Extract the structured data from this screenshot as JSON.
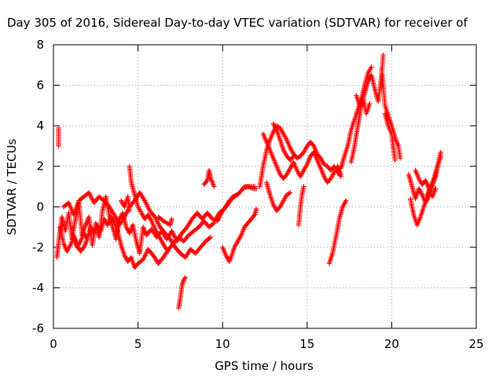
{
  "chart_data": {
    "type": "scatter",
    "title": "Day 305 of 2016, Sidereal Day-to-day VTEC variation (SDTVAR) for receiver of",
    "xlabel": "GPS time / hours",
    "ylabel": "SDTVAR / TECUs",
    "xlim": [
      0,
      25
    ],
    "ylim": [
      -6,
      8
    ],
    "xticks": [
      0,
      5,
      10,
      15,
      20,
      25
    ],
    "yticks": [
      -6,
      -4,
      -2,
      0,
      2,
      4,
      6,
      8
    ],
    "grid": true,
    "marker": "plus",
    "color": "#ff0000",
    "segments": [
      [
        [
          0.3,
          3.0
        ],
        [
          0.3,
          3.9
        ]
      ],
      [
        [
          0.2,
          -2.5
        ],
        [
          0.3,
          -1.8
        ],
        [
          0.5,
          -0.5
        ],
        [
          0.7,
          -1.2
        ],
        [
          0.9,
          -0.3
        ],
        [
          1.1,
          -1.6
        ],
        [
          1.3,
          -0.6
        ],
        [
          1.5,
          0.2
        ],
        [
          1.7,
          -1.4
        ],
        [
          1.9,
          -0.9
        ],
        [
          2.1,
          -0.5
        ],
        [
          2.3,
          -1.9
        ],
        [
          2.5,
          -0.8
        ],
        [
          2.7,
          -1.5
        ],
        [
          2.9,
          -0.2
        ],
        [
          3.1,
          0.5
        ],
        [
          3.3,
          -0.4
        ],
        [
          3.5,
          -1.0
        ],
        [
          3.7,
          -1.6
        ],
        [
          3.9,
          -0.6
        ],
        [
          4.1,
          -0.3
        ],
        [
          4.3,
          -1.0
        ],
        [
          4.5,
          -1.3
        ],
        [
          4.7,
          -0.9
        ],
        [
          4.9,
          -1.7
        ],
        [
          5.1,
          -2.3
        ],
        [
          5.3,
          -1.0
        ],
        [
          5.5,
          -1.4
        ],
        [
          5.8,
          -1.1
        ],
        [
          6.1,
          -1.5
        ],
        [
          6.4,
          -1.2
        ],
        [
          6.7,
          -1.6
        ],
        [
          7.0,
          -1.2
        ],
        [
          7.3,
          -1.7
        ],
        [
          7.6,
          -1.3
        ],
        [
          7.9,
          -1.0
        ],
        [
          8.2,
          -0.6
        ],
        [
          8.5,
          -0.3
        ],
        [
          8.8,
          -0.6
        ],
        [
          9.1,
          -0.3
        ],
        [
          9.4,
          -0.6
        ],
        [
          9.7,
          -0.7
        ],
        [
          10.0,
          -0.2
        ],
        [
          10.3,
          0.1
        ],
        [
          10.6,
          0.5
        ],
        [
          10.9,
          0.6
        ],
        [
          11.2,
          0.9
        ],
        [
          11.5,
          1.0
        ],
        [
          11.8,
          0.9
        ],
        [
          12.0,
          0.9
        ]
      ],
      [
        [
          0.4,
          -1.0
        ],
        [
          0.6,
          -1.8
        ],
        [
          0.8,
          -2.2
        ],
        [
          1.0,
          -1.9
        ],
        [
          1.2,
          -1.5
        ],
        [
          1.4,
          -2.0
        ],
        [
          1.6,
          -1.7
        ],
        [
          1.8,
          -1.3
        ],
        [
          2.0,
          -1.6
        ],
        [
          2.2,
          -1.0
        ],
        [
          2.4,
          -1.3
        ],
        [
          2.6,
          -0.9
        ],
        [
          2.8,
          -1.2
        ],
        [
          3.0,
          -0.6
        ],
        [
          3.2,
          -0.9
        ],
        [
          3.4,
          -0.5
        ],
        [
          3.6,
          -0.8
        ],
        [
          3.8,
          -1.2
        ],
        [
          4.0,
          -1.9
        ],
        [
          4.2,
          -2.4
        ],
        [
          4.4,
          -2.7
        ],
        [
          4.6,
          -2.5
        ],
        [
          4.8,
          -3.0
        ],
        [
          5.0,
          -2.8
        ],
        [
          5.3,
          -2.6
        ],
        [
          5.6,
          -2.1
        ],
        [
          5.9,
          -2.4
        ],
        [
          6.2,
          -2.8
        ],
        [
          6.5,
          -2.5
        ],
        [
          6.8,
          -2.1
        ],
        [
          7.1,
          -1.8
        ],
        [
          7.4,
          -1.5
        ],
        [
          7.7,
          -1.7
        ],
        [
          8.0,
          -1.4
        ],
        [
          8.3,
          -1.2
        ],
        [
          8.6,
          -1.0
        ],
        [
          8.9,
          -0.7
        ],
        [
          9.2,
          -1.0
        ],
        [
          9.5,
          -0.8
        ]
      ],
      [
        [
          0.6,
          0.0
        ],
        [
          0.9,
          0.2
        ],
        [
          1.2,
          -0.4
        ],
        [
          1.5,
          0.3
        ],
        [
          1.8,
          0.5
        ],
        [
          2.1,
          0.7
        ],
        [
          2.4,
          0.2
        ],
        [
          2.7,
          0.5
        ],
        [
          3.0,
          0.3
        ],
        [
          3.3,
          0.0
        ],
        [
          3.6,
          -0.4
        ],
        [
          3.9,
          -0.9
        ],
        [
          4.2,
          -0.5
        ],
        [
          4.5,
          0.0
        ],
        [
          4.8,
          0.3
        ],
        [
          5.1,
          0.7
        ],
        [
          5.4,
          0.3
        ],
        [
          5.7,
          -0.2
        ],
        [
          6.0,
          -0.5
        ],
        [
          6.3,
          -1.0
        ],
        [
          6.6,
          -1.3
        ],
        [
          6.9,
          -1.6
        ],
        [
          7.2,
          -2.0
        ],
        [
          7.5,
          -2.3
        ],
        [
          7.8,
          -2.5
        ],
        [
          8.1,
          -2.1
        ],
        [
          8.4,
          -2.3
        ],
        [
          8.7,
          -2.0
        ],
        [
          9.0,
          -1.7
        ],
        [
          9.3,
          -1.5
        ]
      ],
      [
        [
          1.2,
          -1.4
        ],
        [
          1.4,
          -1.9
        ],
        [
          1.6,
          -2.2
        ],
        [
          1.8,
          -2.0
        ],
        [
          2.0,
          -1.6
        ]
      ],
      [
        [
          4.5,
          2.0
        ],
        [
          4.6,
          1.2
        ],
        [
          4.8,
          0.6
        ],
        [
          5.0,
          0.0
        ],
        [
          5.2,
          -0.3
        ],
        [
          5.4,
          -0.6
        ],
        [
          5.6,
          -0.4
        ],
        [
          5.8,
          -0.7
        ],
        [
          6.0,
          -1.1
        ],
        [
          6.2,
          -1.4
        ],
        [
          6.4,
          -1.7
        ],
        [
          6.6,
          -2.0
        ],
        [
          6.8,
          -2.2
        ]
      ],
      [
        [
          6.2,
          -0.5
        ],
        [
          6.5,
          -0.7
        ],
        [
          6.9,
          -0.9
        ],
        [
          7.0,
          -0.6
        ]
      ],
      [
        [
          4.0,
          0.3
        ],
        [
          4.2,
          0.0
        ],
        [
          4.4,
          0.5
        ],
        [
          4.5,
          -0.2
        ]
      ],
      [
        [
          7.4,
          -5.0
        ],
        [
          7.5,
          -4.5
        ],
        [
          7.6,
          -3.9
        ],
        [
          7.7,
          -3.6
        ],
        [
          7.8,
          -3.5
        ]
      ],
      [
        [
          8.9,
          1.1
        ],
        [
          9.1,
          1.3
        ],
        [
          9.2,
          1.8
        ],
        [
          9.3,
          1.4
        ],
        [
          9.5,
          1.0
        ]
      ],
      [
        [
          9.6,
          -0.6
        ],
        [
          9.8,
          -0.3
        ],
        [
          10.1,
          -0.1
        ],
        [
          10.4,
          0.3
        ],
        [
          10.7,
          0.5
        ],
        [
          11.0,
          0.7
        ],
        [
          11.3,
          1.0
        ],
        [
          11.6,
          1.0
        ],
        [
          11.9,
          1.0
        ]
      ],
      [
        [
          10.0,
          -2.0
        ],
        [
          10.2,
          -2.4
        ],
        [
          10.4,
          -2.7
        ],
        [
          10.5,
          -2.5
        ],
        [
          10.7,
          -2.0
        ],
        [
          10.9,
          -1.7
        ],
        [
          11.1,
          -1.4
        ],
        [
          11.3,
          -1.0
        ],
        [
          11.5,
          -0.8
        ],
        [
          11.7,
          -0.6
        ],
        [
          11.9,
          -0.4
        ],
        [
          12.0,
          -0.1
        ]
      ],
      [
        [
          12.2,
          1.0
        ],
        [
          12.4,
          2.0
        ],
        [
          12.6,
          2.8
        ],
        [
          12.8,
          3.3
        ],
        [
          13.0,
          3.7
        ],
        [
          13.2,
          4.0
        ],
        [
          13.4,
          3.9
        ],
        [
          13.6,
          3.6
        ],
        [
          13.8,
          3.3
        ],
        [
          14.0,
          2.9
        ],
        [
          14.2,
          2.6
        ],
        [
          14.4,
          2.4
        ],
        [
          14.6,
          2.5
        ],
        [
          14.8,
          2.7
        ],
        [
          15.0,
          3.0
        ],
        [
          15.2,
          3.2
        ],
        [
          15.4,
          3.0
        ],
        [
          15.6,
          2.6
        ],
        [
          15.8,
          2.4
        ],
        [
          16.0,
          2.1
        ],
        [
          16.2,
          2.0
        ],
        [
          16.4,
          1.8
        ],
        [
          16.6,
          2.0
        ],
        [
          16.8,
          1.7
        ],
        [
          17.0,
          1.5
        ]
      ],
      [
        [
          12.4,
          3.6
        ],
        [
          12.6,
          3.2
        ],
        [
          12.8,
          2.8
        ],
        [
          13.0,
          2.4
        ],
        [
          13.2,
          2.0
        ],
        [
          13.4,
          1.6
        ],
        [
          13.6,
          1.4
        ],
        [
          13.8,
          1.6
        ],
        [
          14.0,
          1.9
        ],
        [
          14.2,
          2.2
        ],
        [
          14.4,
          1.8
        ],
        [
          14.6,
          1.5
        ],
        [
          14.8,
          1.8
        ],
        [
          15.0,
          2.1
        ],
        [
          15.2,
          2.5
        ],
        [
          15.4,
          2.7
        ],
        [
          15.6,
          2.3
        ],
        [
          15.8,
          1.9
        ],
        [
          16.0,
          1.5
        ],
        [
          16.2,
          1.2
        ],
        [
          16.4,
          1.4
        ],
        [
          16.6,
          1.7
        ],
        [
          16.8,
          2.0
        ],
        [
          17.0,
          1.6
        ]
      ],
      [
        [
          12.6,
          1.2
        ],
        [
          12.8,
          0.6
        ],
        [
          13.0,
          0.1
        ],
        [
          13.2,
          -0.2
        ],
        [
          13.4,
          0.0
        ],
        [
          13.6,
          0.3
        ],
        [
          13.8,
          0.6
        ],
        [
          14.0,
          0.7
        ]
      ],
      [
        [
          13.0,
          4.1
        ],
        [
          13.2,
          3.8
        ],
        [
          13.4,
          3.3
        ],
        [
          13.6,
          2.8
        ],
        [
          13.8,
          2.5
        ],
        [
          14.0,
          2.3
        ],
        [
          14.2,
          2.5
        ]
      ],
      [
        [
          14.5,
          -0.9
        ],
        [
          14.6,
          0.0
        ],
        [
          14.7,
          0.6
        ],
        [
          14.8,
          1.0
        ]
      ],
      [
        [
          16.3,
          -2.8
        ],
        [
          16.5,
          -2.3
        ],
        [
          16.7,
          -1.5
        ],
        [
          16.9,
          -0.6
        ],
        [
          17.1,
          0.0
        ],
        [
          17.3,
          0.3
        ]
      ],
      [
        [
          17.0,
          1.9
        ],
        [
          17.2,
          2.5
        ],
        [
          17.4,
          3.0
        ],
        [
          17.6,
          3.8
        ],
        [
          17.8,
          4.3
        ],
        [
          18.0,
          4.8
        ],
        [
          18.2,
          5.3
        ],
        [
          18.4,
          6.0
        ],
        [
          18.6,
          6.6
        ],
        [
          18.8,
          6.9
        ]
      ],
      [
        [
          17.6,
          2.2
        ],
        [
          17.8,
          3.0
        ],
        [
          18.0,
          4.0
        ],
        [
          18.2,
          5.0
        ],
        [
          18.4,
          5.6
        ],
        [
          18.6,
          6.2
        ],
        [
          18.8,
          6.5
        ],
        [
          19.0,
          5.8
        ],
        [
          19.2,
          5.2
        ],
        [
          19.4,
          6.5
        ],
        [
          19.5,
          7.5
        ]
      ],
      [
        [
          17.9,
          5.5
        ],
        [
          18.1,
          5.0
        ],
        [
          18.3,
          5.4
        ],
        [
          18.5,
          4.6
        ],
        [
          18.7,
          5.1
        ]
      ],
      [
        [
          19.4,
          6.8
        ],
        [
          19.5,
          6.0
        ],
        [
          19.6,
          5.0
        ],
        [
          19.8,
          4.5
        ],
        [
          20.0,
          4.0
        ],
        [
          20.2,
          3.4
        ],
        [
          20.4,
          3.0
        ],
        [
          20.5,
          2.4
        ]
      ],
      [
        [
          19.6,
          4.6
        ],
        [
          19.8,
          4.0
        ],
        [
          20.0,
          3.6
        ],
        [
          20.1,
          2.9
        ],
        [
          20.2,
          2.3
        ]
      ],
      [
        [
          21.0,
          1.6
        ],
        [
          21.2,
          1.0
        ],
        [
          21.4,
          0.4
        ],
        [
          21.6,
          0.9
        ],
        [
          21.8,
          0.6
        ],
        [
          22.0,
          0.2
        ],
        [
          22.2,
          0.5
        ],
        [
          22.4,
          1.0
        ],
        [
          22.6,
          1.5
        ],
        [
          22.8,
          2.3
        ],
        [
          22.9,
          2.7
        ]
      ],
      [
        [
          21.1,
          0.4
        ],
        [
          21.3,
          -0.4
        ],
        [
          21.5,
          -0.9
        ],
        [
          21.7,
          -0.5
        ],
        [
          21.9,
          0.0
        ],
        [
          22.1,
          0.6
        ],
        [
          22.3,
          1.0
        ],
        [
          22.5,
          1.4
        ],
        [
          22.7,
          2.0
        ],
        [
          22.9,
          2.5
        ]
      ],
      [
        [
          21.4,
          1.8
        ],
        [
          21.6,
          1.4
        ],
        [
          21.8,
          1.1
        ],
        [
          22.0,
          1.3
        ],
        [
          22.2,
          0.9
        ],
        [
          22.4,
          0.5
        ],
        [
          22.6,
          0.9
        ]
      ]
    ]
  }
}
